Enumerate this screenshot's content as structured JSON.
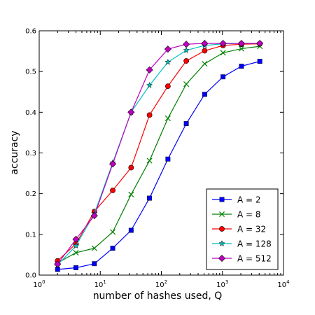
{
  "chart_data": {
    "type": "line",
    "xlabel": "number of hashes used, Q",
    "ylabel": "accuracy",
    "xscale": "log",
    "xlim": [
      1,
      10000
    ],
    "ylim": [
      0,
      0.6
    ],
    "xticks": [
      1,
      10,
      100,
      1000,
      10000
    ],
    "xtick_labels": [
      {
        "base": "10",
        "exp": "0"
      },
      {
        "base": "10",
        "exp": "1"
      },
      {
        "base": "10",
        "exp": "2"
      },
      {
        "base": "10",
        "exp": "3"
      },
      {
        "base": "10",
        "exp": "4"
      }
    ],
    "yticks": [
      0.0,
      0.1,
      0.2,
      0.3,
      0.4,
      0.5,
      0.6
    ],
    "ytick_labels": [
      "0.0",
      "0.1",
      "0.2",
      "0.3",
      "0.4",
      "0.5",
      "0.6"
    ],
    "grid": false,
    "legend_position": "bottom-right",
    "x": [
      2,
      4,
      8,
      16,
      32,
      64,
      128,
      256,
      512,
      1024,
      2048,
      4096
    ],
    "series": [
      {
        "name": "A = 2",
        "color": "#0000ff",
        "marker": "square",
        "values": [
          0.014,
          0.018,
          0.028,
          0.066,
          0.11,
          0.189,
          0.285,
          0.372,
          0.444,
          0.487,
          0.513,
          0.525
        ]
      },
      {
        "name": "A = 8",
        "color": "#008000",
        "marker": "x",
        "values": [
          0.03,
          0.055,
          0.066,
          0.106,
          0.198,
          0.281,
          0.385,
          0.469,
          0.519,
          0.546,
          0.556,
          0.562
        ]
      },
      {
        "name": "A = 32",
        "color": "#ff0000",
        "marker": "circle",
        "values": [
          0.035,
          0.077,
          0.156,
          0.208,
          0.264,
          0.393,
          0.464,
          0.526,
          0.551,
          0.564,
          0.567,
          0.568
        ]
      },
      {
        "name": "A = 128",
        "color": "#00bfbf",
        "marker": "star",
        "values": [
          0.025,
          0.072,
          0.151,
          0.276,
          0.4,
          0.466,
          0.523,
          0.552,
          0.564,
          0.568,
          0.569,
          0.569
        ]
      },
      {
        "name": "A = 512",
        "color": "#bf00bf",
        "marker": "diamond",
        "values": [
          0.027,
          0.088,
          0.146,
          0.273,
          0.4,
          0.504,
          0.555,
          0.567,
          0.569,
          0.569,
          0.569,
          0.569
        ]
      }
    ]
  }
}
